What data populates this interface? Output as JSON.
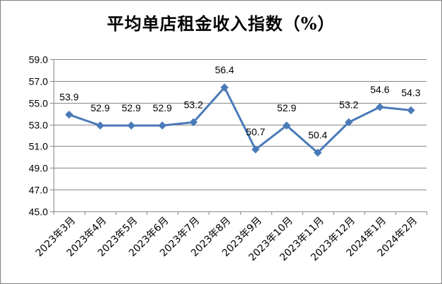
{
  "chart_data": {
    "type": "line",
    "title": "平均单店租金收入指数（%）",
    "categories": [
      "2023年3月",
      "2023年4月",
      "2023年5月",
      "2023年6月",
      "2023年7月",
      "2023年8月",
      "2023年9月",
      "2023年10月",
      "2023年11月",
      "2023年12月",
      "2024年1月",
      "2024年2月"
    ],
    "series": [
      {
        "values": [
          53.9,
          52.9,
          52.9,
          52.9,
          53.2,
          56.4,
          50.7,
          52.9,
          50.4,
          53.2,
          54.6,
          54.3
        ]
      }
    ],
    "data_labels": [
      "53.9",
      "52.9",
      "52.9",
      "52.9",
      "53.2",
      "56.4",
      "50.7",
      "52.9",
      "50.4",
      "53.2",
      "54.6",
      "54.3"
    ],
    "y_ticks": [
      "45.0",
      "47.0",
      "49.0",
      "51.0",
      "53.0",
      "55.0",
      "57.0",
      "59.0"
    ],
    "ylim": [
      45.0,
      59.0
    ],
    "grid": true,
    "legend": "none",
    "line_color": "#4a7ab8",
    "grid_color": "#868686"
  }
}
